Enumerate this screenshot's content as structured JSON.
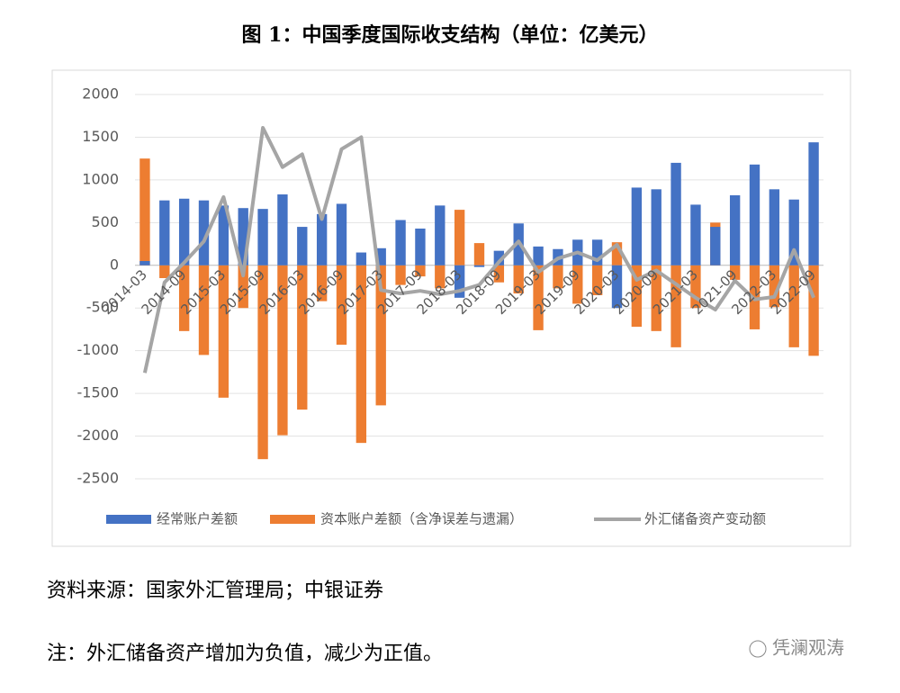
{
  "chart_data": {
    "type": "bar-line",
    "title": "图 1：中国季度国际收支结构（单位：亿美元）",
    "categories": [
      "2014-03",
      null,
      "2014-09",
      null,
      "2015-03",
      null,
      "2015-09",
      null,
      "2016-03",
      null,
      "2016-09",
      null,
      "2017-03",
      null,
      "2017-09",
      null,
      "2018-03",
      null,
      "2018-09",
      null,
      "2019-03",
      null,
      "2019-09",
      null,
      "2020-03",
      null,
      "2020-09",
      null,
      "2021-03",
      null,
      "2021-09",
      null,
      "2022-03",
      null,
      "2022-09"
    ],
    "series": [
      {
        "name": "经常账户差额",
        "type": "bar",
        "color": "#4472c4",
        "values": [
          50,
          760,
          780,
          760,
          700,
          670,
          660,
          830,
          450,
          600,
          720,
          150,
          200,
          530,
          430,
          700,
          -380,
          -20,
          170,
          490,
          220,
          190,
          300,
          300,
          -500,
          910,
          890,
          1200,
          710,
          450,
          820,
          1180,
          890,
          770,
          1440
        ]
      },
      {
        "name": "资本账户差额（含净误差与遗漏）",
        "type": "bar",
        "color": "#ed7d31",
        "values": [
          1250,
          -150,
          -770,
          -1050,
          -1550,
          -500,
          -2270,
          -1990,
          -1690,
          -420,
          -930,
          -2080,
          -1640,
          -230,
          -130,
          -270,
          650,
          260,
          -200,
          -330,
          -760,
          -270,
          -450,
          -350,
          270,
          -720,
          -770,
          -960,
          -500,
          500,
          -170,
          -750,
          -490,
          -960,
          -1060
        ]
      },
      {
        "name": "外汇储备资产变动额",
        "type": "line",
        "color": "#a5a5a5",
        "values": [
          -1260,
          -200,
          30,
          280,
          800,
          -120,
          1610,
          1150,
          1300,
          540,
          1360,
          1500,
          -290,
          -330,
          -300,
          -340,
          -300,
          -230,
          40,
          280,
          -80,
          80,
          150,
          60,
          240,
          -170,
          -60,
          -220,
          -380,
          -520,
          -180,
          -400,
          -370,
          180,
          -380
        ]
      }
    ],
    "ylim": [
      -2500,
      2000
    ],
    "yticks": [
      -2500,
      -2000,
      -1500,
      -1000,
      -500,
      0,
      500,
      1000,
      1500,
      2000
    ],
    "grid": true,
    "legend": "bottom"
  },
  "source": "资料来源：国家外汇管理局；中银证券",
  "note": "注：外汇储备资产增加为负值，减少为正值。",
  "watermark": "凭澜观涛"
}
